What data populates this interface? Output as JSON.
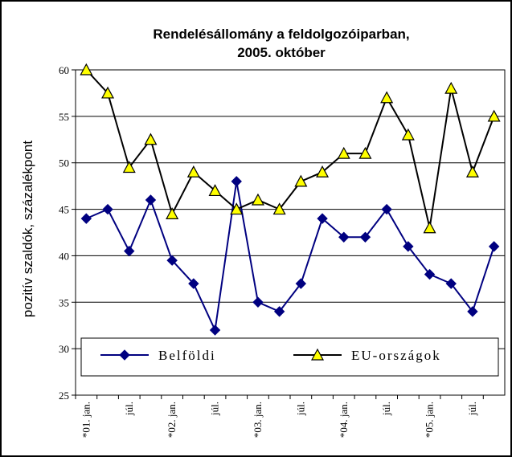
{
  "chart_data": {
    "type": "line",
    "title": [
      "Rendelésállomány a feldolgozóiparban,",
      "2005. október"
    ],
    "y_label": "pozitív szaldók, százalékpont",
    "categories": [
      "*01. jan.",
      null,
      "júl.",
      null,
      "*02. jan.",
      null,
      "júl.",
      null,
      "*03. jan.",
      null,
      "júl.",
      null,
      "*04. jan.",
      null,
      "júl.",
      null,
      "*05. jan.",
      null,
      "júl.",
      null
    ],
    "series": [
      {
        "name": "Belföldi",
        "color": "#000080",
        "marker": "diamond",
        "values": [
          44,
          45,
          40.5,
          46,
          39.5,
          37,
          32,
          48,
          35,
          34,
          37,
          44,
          42,
          42,
          45,
          41,
          38,
          37,
          34,
          41
        ]
      },
      {
        "name": "EU-országok",
        "color": "#000000",
        "marker": "triangle",
        "marker_color": "#ffff00",
        "values": [
          60,
          57.5,
          49.5,
          52.5,
          44.5,
          49,
          47,
          45,
          46,
          45,
          48,
          49,
          51,
          51,
          57,
          53,
          43,
          58,
          49,
          55
        ]
      }
    ],
    "ylim": [
      25,
      60
    ],
    "yticks": [
      25,
      30,
      35,
      40,
      45,
      50,
      55,
      60
    ],
    "grid": true
  }
}
